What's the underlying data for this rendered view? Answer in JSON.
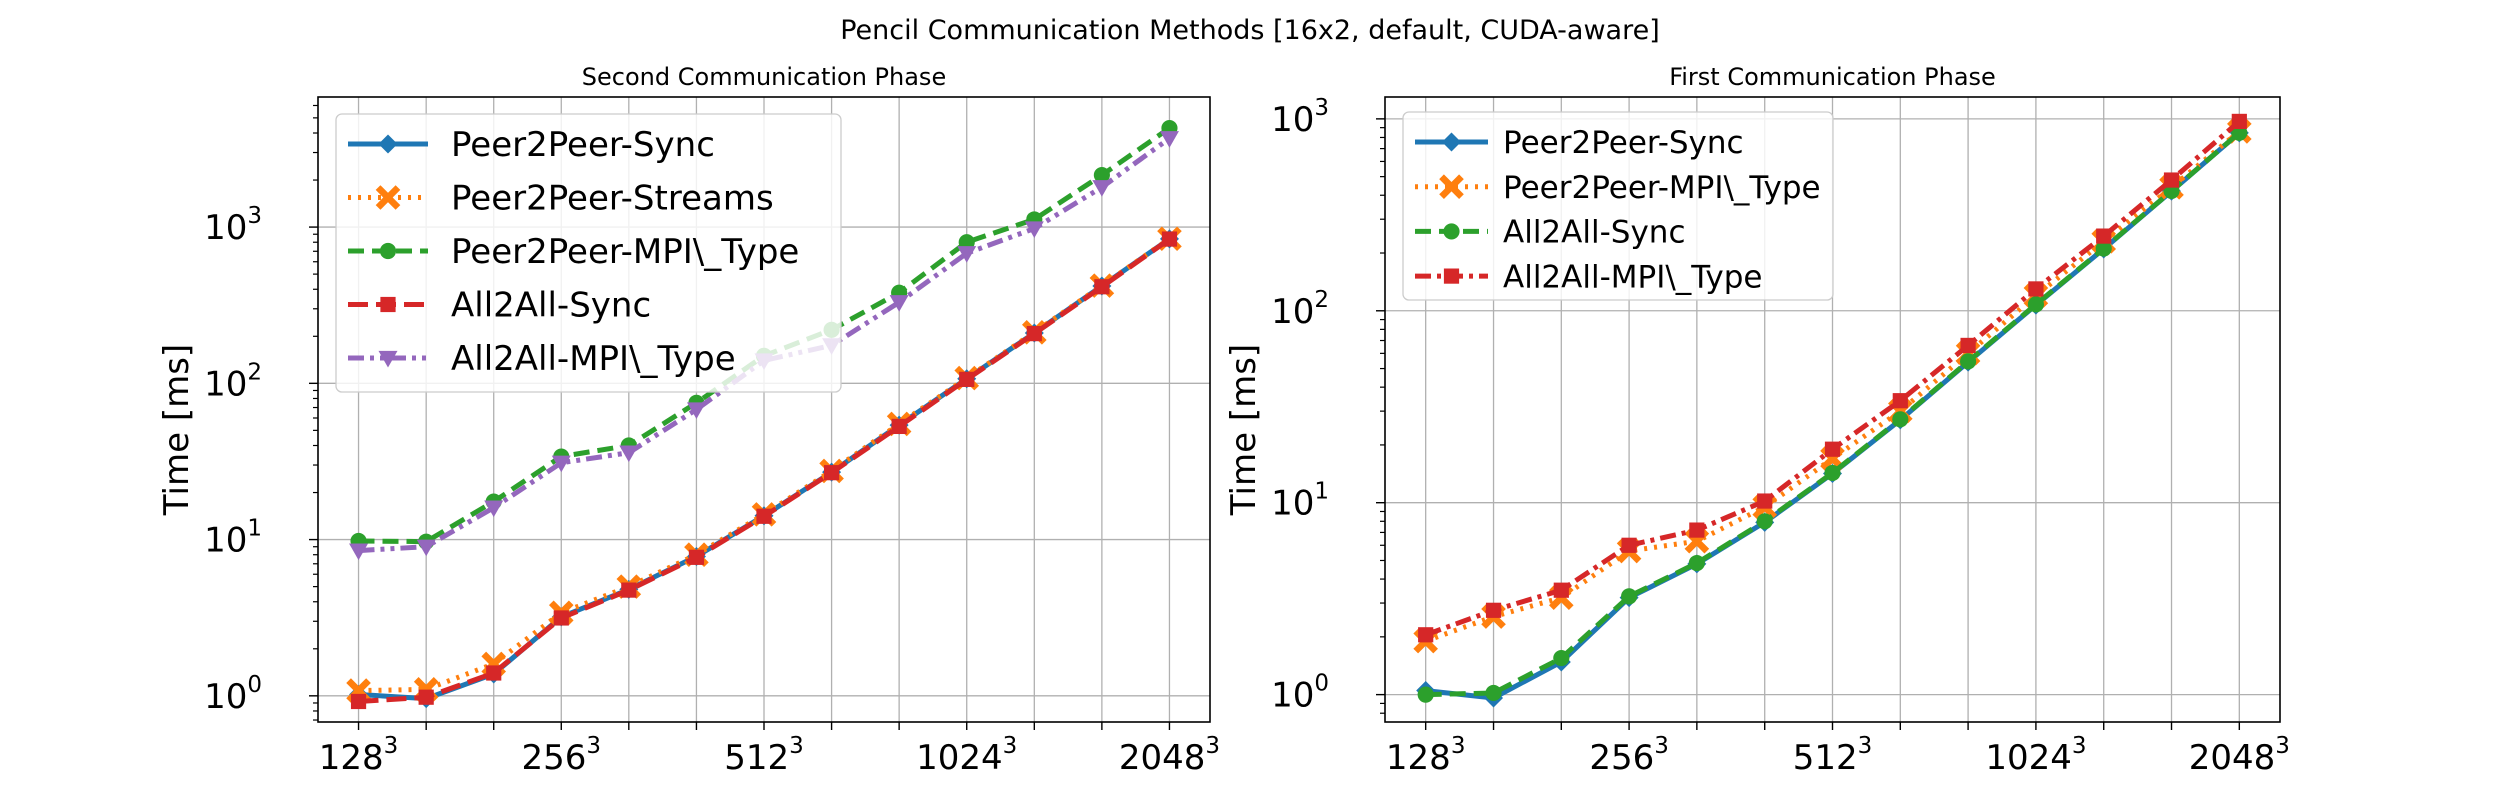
{
  "figure": {
    "title": "Pencil Communication Methods [16x2, default, CUDA-aware]"
  },
  "chart_data": [
    {
      "type": "line",
      "title": "Second Communication Phase",
      "xlabel": "",
      "ylabel": "Time [ms]",
      "yscale": "log",
      "ylim": [
        0.68,
        6800
      ],
      "grid": true,
      "legend": "upper-left",
      "x": [
        128,
        161.3,
        203.2,
        256,
        322.5,
        406.4,
        512,
        645.1,
        812.7,
        1024,
        1290.2,
        1625.5,
        2048
      ],
      "xticks": [
        {
          "value": 128,
          "base": "128",
          "exp": "3"
        },
        {
          "value": 256,
          "base": "256",
          "exp": "3"
        },
        {
          "value": 512,
          "base": "512",
          "exp": "3"
        },
        {
          "value": 1024,
          "base": "1024",
          "exp": "3"
        },
        {
          "value": 2048,
          "base": "2048",
          "exp": "3"
        }
      ],
      "yticks": [
        {
          "value": 1,
          "base": "10",
          "exp": "0"
        },
        {
          "value": 10,
          "base": "10",
          "exp": "1"
        },
        {
          "value": 100,
          "base": "10",
          "exp": "2"
        },
        {
          "value": 1000,
          "base": "10",
          "exp": "3"
        }
      ],
      "series": [
        {
          "name": "Peer2Peer-Sync",
          "color": "#1f77b4",
          "dash": "solid",
          "marker": "diamond",
          "values": [
            1.02,
            0.96,
            1.38,
            3.2,
            4.8,
            7.8,
            14.2,
            27,
            54,
            107,
            210,
            420,
            840
          ]
        },
        {
          "name": "Peer2Peer-Streams",
          "color": "#ff7f0e",
          "dash": "dotted",
          "marker": "x",
          "values": [
            1.08,
            1.1,
            1.6,
            3.4,
            5.0,
            8.0,
            14.5,
            27.5,
            55,
            108,
            212,
            422,
            842
          ]
        },
        {
          "name": "Peer2Peer-MPI\\_Type",
          "color": "#2ca02c",
          "dash": "dashed",
          "marker": "circle",
          "values": [
            9.8,
            9.7,
            17.5,
            34,
            40,
            75,
            150,
            220,
            380,
            800,
            1120,
            2150,
            4300
          ]
        },
        {
          "name": "All2All-Sync",
          "color": "#d62728",
          "dash": "longdash",
          "marker": "square",
          "values": [
            0.92,
            0.98,
            1.4,
            3.15,
            4.75,
            7.7,
            14.1,
            26.8,
            53,
            106,
            208,
            415,
            838
          ]
        },
        {
          "name": "All2All-MPI\\_Type",
          "color": "#9467bd",
          "dash": "dashdotdot",
          "marker": "triangle-down",
          "values": [
            8.5,
            9.0,
            16.0,
            31,
            36,
            68,
            140,
            175,
            330,
            680,
            980,
            1800,
            3700
          ]
        }
      ]
    },
    {
      "type": "line",
      "title": "First Communication Phase",
      "xlabel": "",
      "ylabel": "Time [ms]",
      "yscale": "log",
      "ylim": [
        0.72,
        1300
      ],
      "grid": true,
      "legend": "upper-left",
      "x": [
        128,
        161.3,
        203.2,
        256,
        322.5,
        406.4,
        512,
        645.1,
        812.7,
        1024,
        1290.2,
        1625.5,
        2048
      ],
      "xticks": [
        {
          "value": 128,
          "base": "128",
          "exp": "3"
        },
        {
          "value": 256,
          "base": "256",
          "exp": "3"
        },
        {
          "value": 512,
          "base": "512",
          "exp": "3"
        },
        {
          "value": 1024,
          "base": "1024",
          "exp": "3"
        },
        {
          "value": 2048,
          "base": "2048",
          "exp": "3"
        }
      ],
      "yticks": [
        {
          "value": 1,
          "base": "10",
          "exp": "0"
        },
        {
          "value": 10,
          "base": "10",
          "exp": "1"
        },
        {
          "value": 100,
          "base": "10",
          "exp": "2"
        },
        {
          "value": 1000,
          "base": "10",
          "exp": "3"
        }
      ],
      "series": [
        {
          "name": "Peer2Peer-Sync",
          "color": "#1f77b4",
          "dash": "solid",
          "marker": "diamond",
          "values": [
            1.05,
            0.96,
            1.48,
            3.2,
            4.8,
            7.9,
            14.2,
            27,
            54,
            107,
            210,
            420,
            845
          ]
        },
        {
          "name": "Peer2Peer-MPI\\_Type",
          "color": "#ff7f0e",
          "dash": "dotted",
          "marker": "x",
          "values": [
            1.9,
            2.55,
            3.2,
            5.6,
            6.3,
            9.5,
            17,
            30,
            60,
            120,
            230,
            440,
            860
          ]
        },
        {
          "name": "All2All-Sync",
          "color": "#2ca02c",
          "dash": "dashed",
          "marker": "circle",
          "values": [
            1.0,
            1.02,
            1.55,
            3.25,
            4.85,
            8.0,
            14.3,
            27.2,
            54.5,
            108,
            211,
            421,
            846
          ]
        },
        {
          "name": "All2All-MPI\\_Type",
          "color": "#d62728",
          "dash": "dashdot",
          "marker": "square",
          "values": [
            2.05,
            2.75,
            3.5,
            6.0,
            7.2,
            10.2,
            19,
            34,
            66,
            130,
            245,
            480,
            970
          ]
        }
      ]
    }
  ]
}
